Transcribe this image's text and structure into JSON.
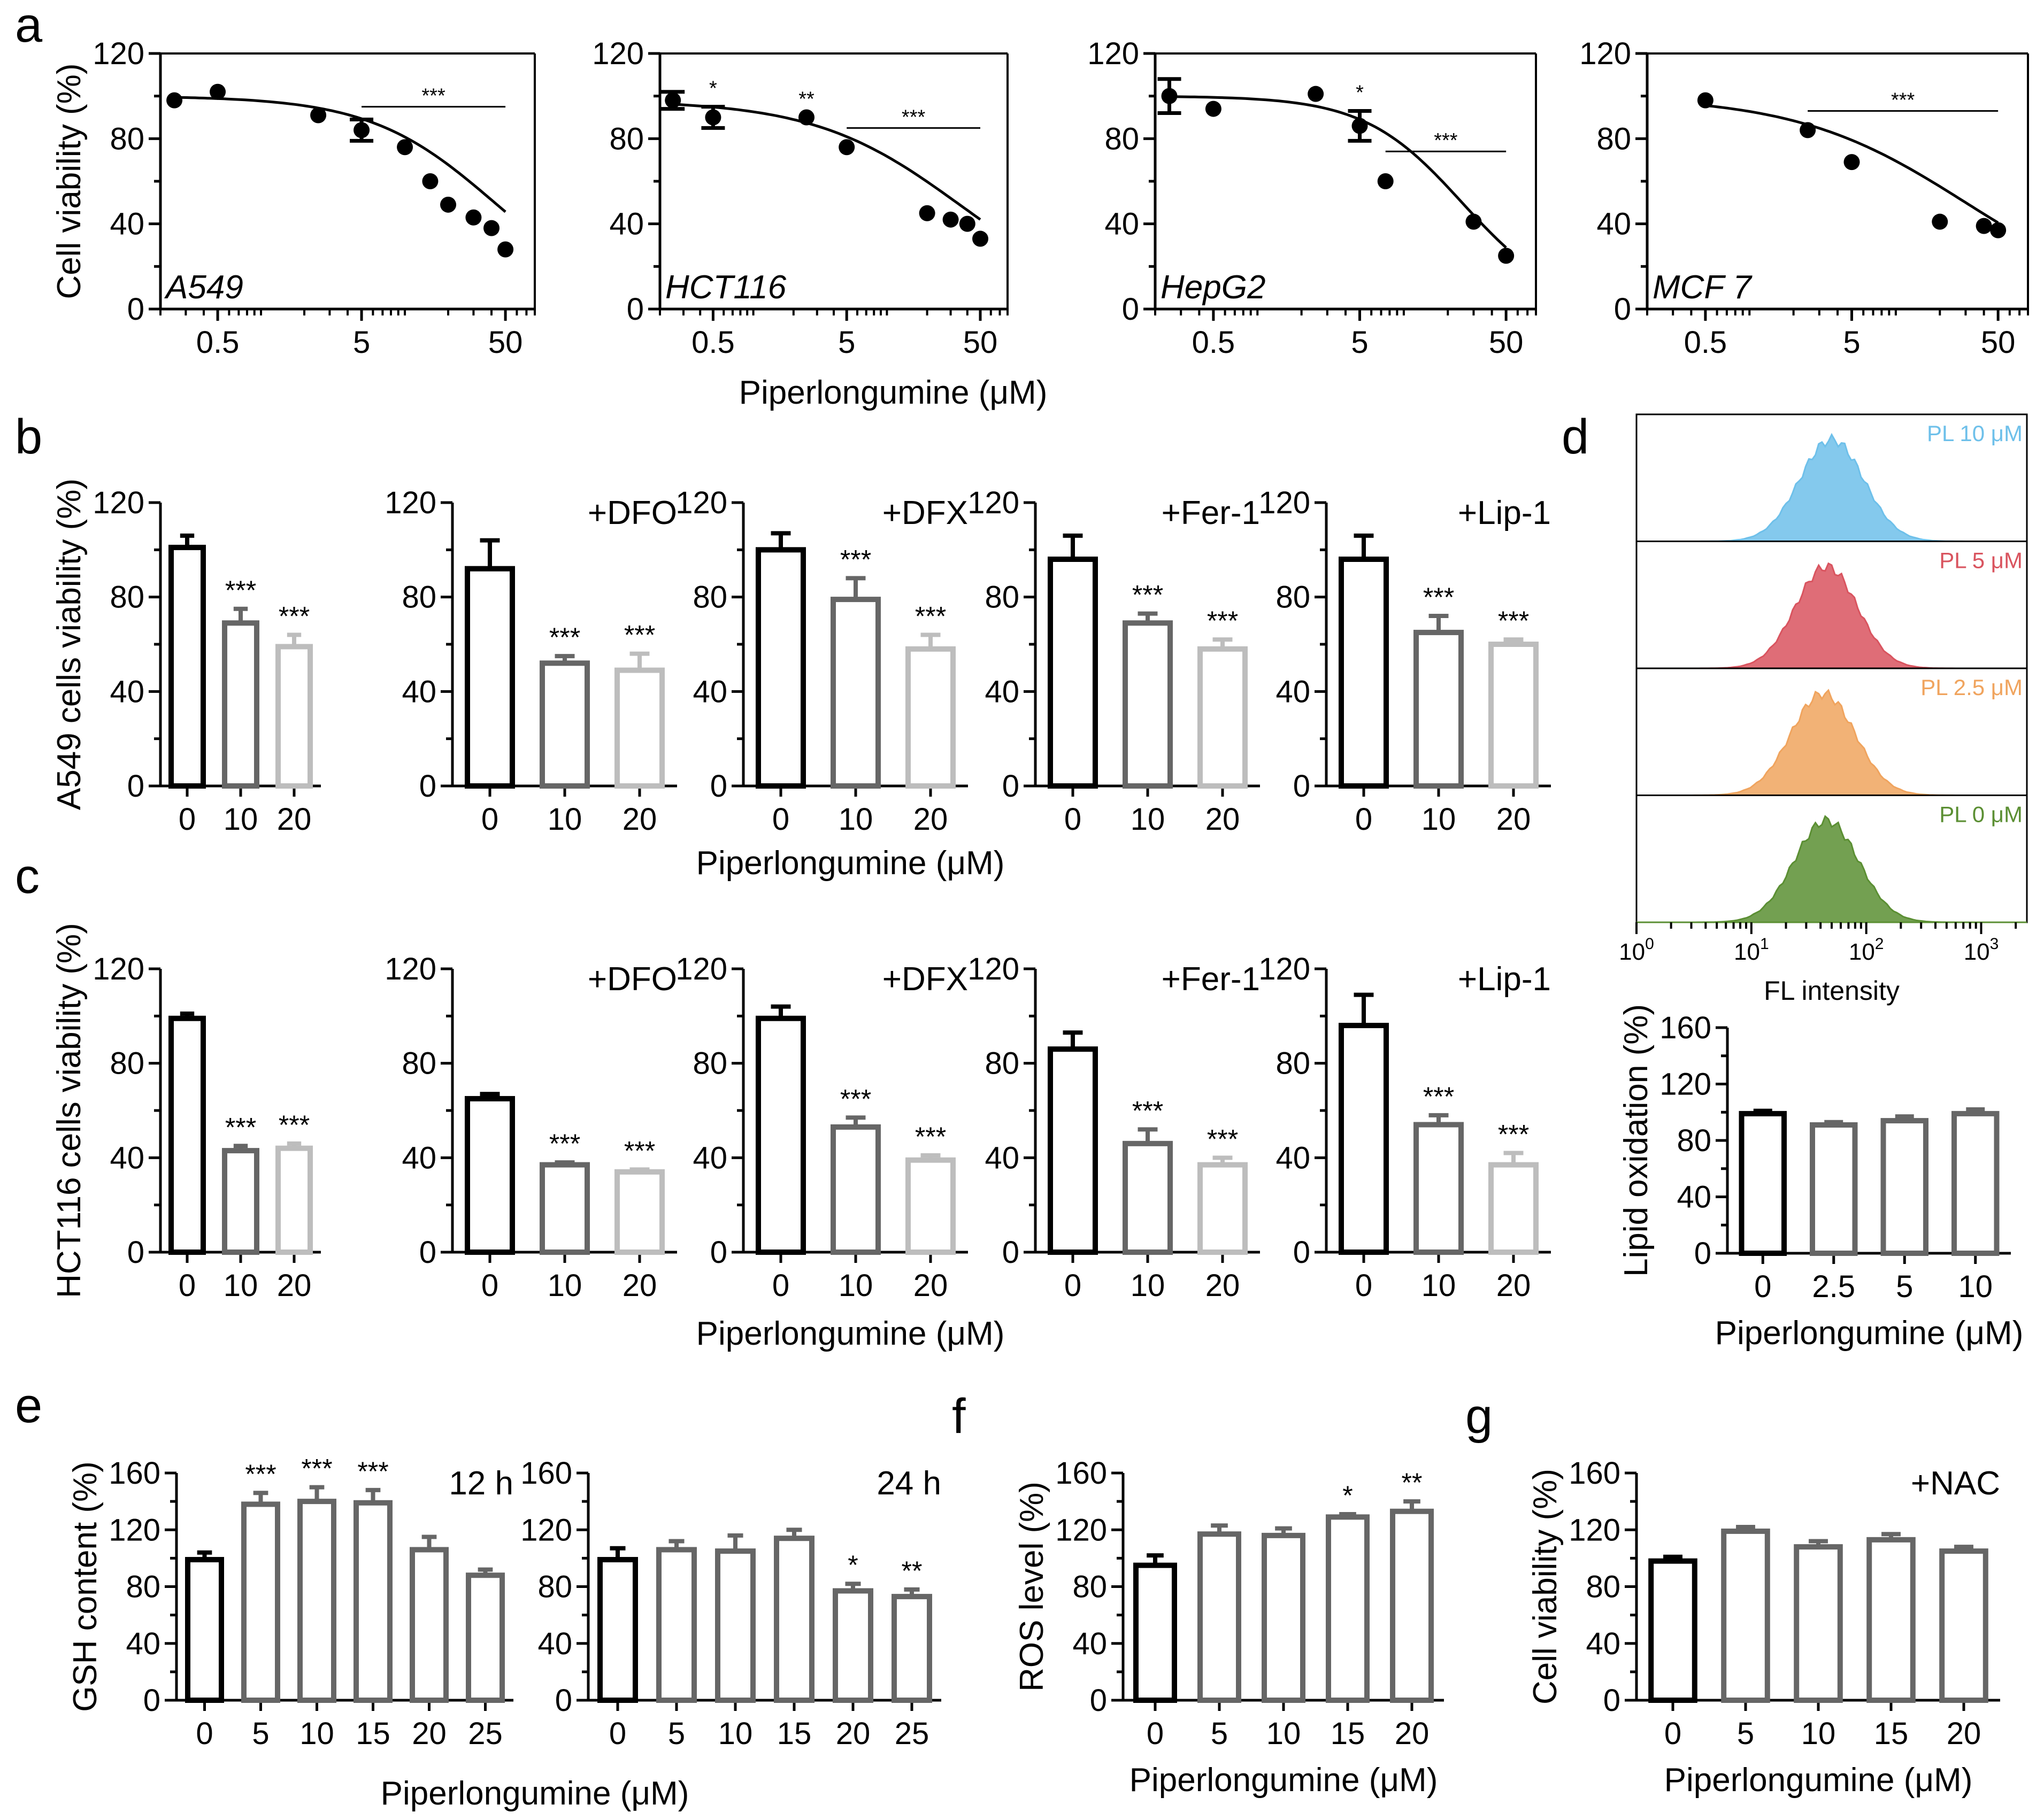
{
  "panel_letters": [
    "a",
    "b",
    "c",
    "d",
    "e",
    "f",
    "g"
  ],
  "common_xlabel": "Piperlongumine (μM)",
  "chart_data": [
    {
      "id": "a1",
      "panel": "a",
      "type": "scatter",
      "title": "A549",
      "ylabel": "Cell viability (%)",
      "xlabel": "",
      "xscale": "log",
      "xlim": [
        0.2,
        80
      ],
      "ylim": [
        0,
        120
      ],
      "yticks": [
        0,
        40,
        80,
        120
      ],
      "xticks": [
        0.5,
        5,
        50
      ],
      "xtick_labels": [
        "0.5",
        "5",
        "50"
      ],
      "x": [
        0.25,
        0.5,
        2.5,
        5,
        10,
        15,
        20,
        30,
        40,
        50
      ],
      "y": [
        98,
        102,
        91,
        84,
        76,
        60,
        49,
        43,
        38,
        28
      ],
      "err": [
        0,
        0,
        0,
        5,
        0,
        0,
        0,
        0,
        0,
        0
      ],
      "fit": {
        "top": 100,
        "bottom": 0,
        "ec50": 42,
        "hill": 1.0
      },
      "sig_bar": {
        "x1": 5,
        "x2": 50,
        "y": 95,
        "label": "***"
      },
      "point_sigs": []
    },
    {
      "id": "a2",
      "panel": "a",
      "type": "scatter",
      "title": "HCT116",
      "ylabel": "",
      "xlabel": "",
      "xscale": "log",
      "xlim": [
        0.2,
        80
      ],
      "ylim": [
        0,
        120
      ],
      "yticks": [
        0,
        40,
        80,
        120
      ],
      "xticks": [
        0.5,
        5,
        50
      ],
      "xtick_labels": [
        "0.5",
        "5",
        "50"
      ],
      "x": [
        0.25,
        0.5,
        2.5,
        5,
        20,
        30,
        40,
        50
      ],
      "y": [
        98,
        90,
        90,
        76,
        45,
        42,
        40,
        33
      ],
      "err": [
        4,
        5,
        0,
        0,
        0,
        0,
        0,
        0
      ],
      "fit": {
        "top": 98,
        "bottom": 0,
        "ec50": 35,
        "hill": 0.8
      },
      "sig_bar": {
        "x1": 5,
        "x2": 50,
        "y": 85,
        "label": "***"
      },
      "point_sigs": [
        {
          "x": 0.5,
          "y": 99,
          "label": "*"
        },
        {
          "x": 2.5,
          "y": 94,
          "label": "**"
        }
      ]
    },
    {
      "id": "a3",
      "panel": "a",
      "type": "scatter",
      "title": "HepG2",
      "ylabel": "",
      "xlabel": "",
      "xscale": "log",
      "xlim": [
        0.2,
        80
      ],
      "ylim": [
        0,
        120
      ],
      "yticks": [
        0,
        40,
        80,
        120
      ],
      "xticks": [
        0.5,
        5,
        50
      ],
      "xtick_labels": [
        "0.5",
        "5",
        "50"
      ],
      "x": [
        0.25,
        0.5,
        2.5,
        5,
        7.5,
        30,
        50
      ],
      "y": [
        100,
        94,
        101,
        86,
        60,
        41,
        25
      ],
      "err": [
        8,
        0,
        0,
        7,
        0,
        0,
        0
      ],
      "fit": {
        "top": 100,
        "bottom": 0,
        "ec50": 25,
        "hill": 1.3
      },
      "sig_bar": {
        "x1": 7.5,
        "x2": 50,
        "y": 74,
        "label": "***"
      },
      "point_sigs": [
        {
          "x": 5,
          "y": 97,
          "label": "*"
        }
      ]
    },
    {
      "id": "a4",
      "panel": "a",
      "type": "scatter",
      "title": "MCF 7",
      "ylabel": "",
      "xlabel": "",
      "xscale": "log",
      "xlim": [
        0.2,
        80
      ],
      "ylim": [
        0,
        120
      ],
      "yticks": [
        0,
        40,
        80,
        120
      ],
      "xticks": [
        0.5,
        5,
        50
      ],
      "xtick_labels": [
        "0.5",
        "5",
        "50"
      ],
      "x": [
        0.5,
        2.5,
        5,
        20,
        40,
        50
      ],
      "y": [
        98,
        84,
        69,
        41,
        39,
        37
      ],
      "err": [
        0,
        0,
        0,
        0,
        0,
        0
      ],
      "fit": {
        "top": 100,
        "bottom": 0,
        "ec50": 30,
        "hill": 0.75
      },
      "sig_bar": {
        "x1": 2.5,
        "x2": 50,
        "y": 93,
        "label": "***"
      },
      "point_sigs": []
    },
    {
      "id": "b1",
      "panel": "b",
      "type": "bar",
      "title": "",
      "ylabel": "A549 cells viability (%)",
      "ylim": [
        0,
        120
      ],
      "yticks": [
        0,
        40,
        80,
        120
      ],
      "categories": [
        "0",
        "10",
        "20"
      ],
      "values": [
        101,
        69,
        59
      ],
      "errors": [
        5,
        6,
        5
      ],
      "sig": [
        "",
        "***",
        "***"
      ],
      "colors": [
        "#000000",
        "#666666",
        "#bdbdbd"
      ]
    },
    {
      "id": "b2",
      "panel": "b",
      "type": "bar",
      "title": "+DFO",
      "ylabel": "",
      "ylim": [
        0,
        120
      ],
      "yticks": [
        0,
        40,
        80,
        120
      ],
      "categories": [
        "0",
        "10",
        "20"
      ],
      "values": [
        92,
        52,
        49
      ],
      "errors": [
        12,
        3,
        7
      ],
      "sig": [
        "",
        "***",
        "***"
      ],
      "colors": [
        "#000000",
        "#666666",
        "#bdbdbd"
      ]
    },
    {
      "id": "b3",
      "panel": "b",
      "type": "bar",
      "title": "+DFX",
      "ylabel": "",
      "ylim": [
        0,
        120
      ],
      "yticks": [
        0,
        40,
        80,
        120
      ],
      "categories": [
        "0",
        "10",
        "20"
      ],
      "values": [
        100,
        79,
        58
      ],
      "errors": [
        7,
        9,
        6
      ],
      "sig": [
        "",
        "***",
        "***"
      ],
      "colors": [
        "#000000",
        "#666666",
        "#bdbdbd"
      ]
    },
    {
      "id": "b4",
      "panel": "b",
      "type": "bar",
      "title": "+Fer-1",
      "ylabel": "",
      "ylim": [
        0,
        120
      ],
      "yticks": [
        0,
        40,
        80,
        120
      ],
      "categories": [
        "0",
        "10",
        "20"
      ],
      "values": [
        96,
        69,
        58
      ],
      "errors": [
        10,
        4,
        4
      ],
      "sig": [
        "",
        "***",
        "***"
      ],
      "colors": [
        "#000000",
        "#666666",
        "#bdbdbd"
      ]
    },
    {
      "id": "b5",
      "panel": "b",
      "type": "bar",
      "title": "+Lip-1",
      "ylabel": "",
      "ylim": [
        0,
        120
      ],
      "yticks": [
        0,
        40,
        80,
        120
      ],
      "categories": [
        "0",
        "10",
        "20"
      ],
      "values": [
        96,
        65,
        60
      ],
      "errors": [
        10,
        7,
        2
      ],
      "sig": [
        "",
        "***",
        "***"
      ],
      "colors": [
        "#000000",
        "#666666",
        "#bdbdbd"
      ]
    },
    {
      "id": "c1",
      "panel": "c",
      "type": "bar",
      "title": "",
      "ylabel": "HCT116 cells viability (%)",
      "ylim": [
        0,
        120
      ],
      "yticks": [
        0,
        40,
        80,
        120
      ],
      "categories": [
        "0",
        "10",
        "20"
      ],
      "values": [
        99,
        43,
        44
      ],
      "errors": [
        2,
        2,
        2
      ],
      "sig": [
        "",
        "***",
        "***"
      ],
      "colors": [
        "#000000",
        "#666666",
        "#bdbdbd"
      ]
    },
    {
      "id": "c2",
      "panel": "c",
      "type": "bar",
      "title": "+DFO",
      "ylabel": "",
      "ylim": [
        0,
        120
      ],
      "yticks": [
        0,
        40,
        80,
        120
      ],
      "categories": [
        "0",
        "10",
        "20"
      ],
      "values": [
        65,
        37,
        34
      ],
      "errors": [
        2,
        1,
        1
      ],
      "sig": [
        "",
        "***",
        "***"
      ],
      "colors": [
        "#000000",
        "#666666",
        "#bdbdbd"
      ]
    },
    {
      "id": "c3",
      "panel": "c",
      "type": "bar",
      "title": "+DFX",
      "ylabel": "",
      "ylim": [
        0,
        120
      ],
      "yticks": [
        0,
        40,
        80,
        120
      ],
      "categories": [
        "0",
        "10",
        "20"
      ],
      "values": [
        99,
        53,
        39
      ],
      "errors": [
        5,
        4,
        2
      ],
      "sig": [
        "",
        "***",
        "***"
      ],
      "colors": [
        "#000000",
        "#666666",
        "#bdbdbd"
      ]
    },
    {
      "id": "c4",
      "panel": "c",
      "type": "bar",
      "title": "+Fer-1",
      "ylabel": "",
      "ylim": [
        0,
        120
      ],
      "yticks": [
        0,
        40,
        80,
        120
      ],
      "categories": [
        "0",
        "10",
        "20"
      ],
      "values": [
        86,
        46,
        37
      ],
      "errors": [
        7,
        6,
        3
      ],
      "sig": [
        "",
        "***",
        "***"
      ],
      "colors": [
        "#000000",
        "#666666",
        "#bdbdbd"
      ]
    },
    {
      "id": "c5",
      "panel": "c",
      "type": "bar",
      "title": "+Lip-1",
      "ylabel": "",
      "ylim": [
        0,
        120
      ],
      "yticks": [
        0,
        40,
        80,
        120
      ],
      "categories": [
        "0",
        "10",
        "20"
      ],
      "values": [
        96,
        54,
        37
      ],
      "errors": [
        13,
        4,
        5
      ],
      "sig": [
        "",
        "***",
        "***"
      ],
      "colors": [
        "#000000",
        "#666666",
        "#bdbdbd"
      ]
    },
    {
      "id": "d1",
      "panel": "d",
      "type": "area",
      "title": "",
      "xlabel": "FL intensity",
      "xscale": "log",
      "xlim": [
        1,
        2500
      ],
      "xticks": [
        1,
        10,
        100,
        1000
      ],
      "xtick_labels": [
        "0",
        "1",
        "2",
        "3"
      ],
      "xtick_base": "10",
      "series": [
        {
          "name": "PL 10 μM",
          "color": "#6ec0ea",
          "peak": 50,
          "width": 0.28
        },
        {
          "name": "PL 5 μM",
          "color": "#d9545f",
          "peak": 45,
          "width": 0.27
        },
        {
          "name": "PL 2.5 μM",
          "color": "#f0a45e",
          "peak": 42,
          "width": 0.28
        },
        {
          "name": "PL 0 μM",
          "color": "#5b8f33",
          "peak": 45,
          "width": 0.28
        }
      ]
    },
    {
      "id": "d2",
      "panel": "d",
      "type": "bar",
      "title": "",
      "ylabel": "Lipid oxidation (%)",
      "xlabel": "Piperlongumine (μM)",
      "ylim": [
        0,
        160
      ],
      "yticks": [
        0,
        40,
        80,
        120,
        160
      ],
      "categories": [
        "0",
        "2.5",
        "5",
        "10"
      ],
      "values": [
        99,
        91,
        94,
        99
      ],
      "errors": [
        2,
        2,
        3,
        3
      ],
      "sig": [
        "",
        "",
        "",
        ""
      ],
      "colors": [
        "#000000",
        "#666666",
        "#666666",
        "#666666"
      ]
    },
    {
      "id": "e1",
      "panel": "e",
      "type": "bar",
      "title": "12 h",
      "ylabel": "GSH content (%)",
      "ylim": [
        0,
        160
      ],
      "yticks": [
        0,
        40,
        80,
        120,
        160
      ],
      "categories": [
        "0",
        "5",
        "10",
        "15",
        "20",
        "25"
      ],
      "values": [
        99,
        138,
        140,
        139,
        106,
        88
      ],
      "errors": [
        5,
        8,
        10,
        9,
        9,
        4
      ],
      "sig": [
        "",
        "***",
        "***",
        "***",
        "",
        ""
      ],
      "colors": [
        "#000000",
        "#666666",
        "#666666",
        "#666666",
        "#666666",
        "#666666"
      ]
    },
    {
      "id": "e2",
      "panel": "e",
      "type": "bar",
      "title": "24 h",
      "ylabel": "",
      "ylim": [
        0,
        160
      ],
      "yticks": [
        0,
        40,
        80,
        120,
        160
      ],
      "categories": [
        "0",
        "5",
        "10",
        "15",
        "20",
        "25"
      ],
      "values": [
        99,
        106,
        105,
        114,
        77,
        73
      ],
      "errors": [
        8,
        6,
        11,
        6,
        5,
        5
      ],
      "sig": [
        "",
        "",
        "",
        "",
        "*",
        "**"
      ],
      "colors": [
        "#000000",
        "#666666",
        "#666666",
        "#666666",
        "#666666",
        "#666666"
      ]
    },
    {
      "id": "f1",
      "panel": "f",
      "type": "bar",
      "title": "",
      "ylabel": "ROS level (%)",
      "xlabel": "Piperlongumine (μM)",
      "ylim": [
        0,
        160
      ],
      "yticks": [
        0,
        40,
        80,
        120,
        160
      ],
      "categories": [
        "0",
        "5",
        "10",
        "15",
        "20"
      ],
      "values": [
        95,
        117,
        116,
        129,
        133
      ],
      "errors": [
        7,
        6,
        5,
        2,
        7
      ],
      "sig": [
        "",
        "",
        "",
        "*",
        "**"
      ],
      "colors": [
        "#000000",
        "#666666",
        "#666666",
        "#666666",
        "#666666"
      ]
    },
    {
      "id": "g1",
      "panel": "g",
      "type": "bar",
      "title": "+NAC",
      "ylabel": "Cell viability (%)",
      "xlabel": "Piperlongumine (μM)",
      "ylim": [
        0,
        160
      ],
      "yticks": [
        0,
        40,
        80,
        120,
        160
      ],
      "categories": [
        "0",
        "5",
        "10",
        "15",
        "20"
      ],
      "values": [
        98,
        119,
        108,
        113,
        105
      ],
      "errors": [
        3,
        3,
        4,
        4,
        3
      ],
      "sig": [
        "",
        "",
        "",
        "",
        ""
      ],
      "colors": [
        "#000000",
        "#666666",
        "#666666",
        "#666666",
        "#666666"
      ]
    }
  ]
}
